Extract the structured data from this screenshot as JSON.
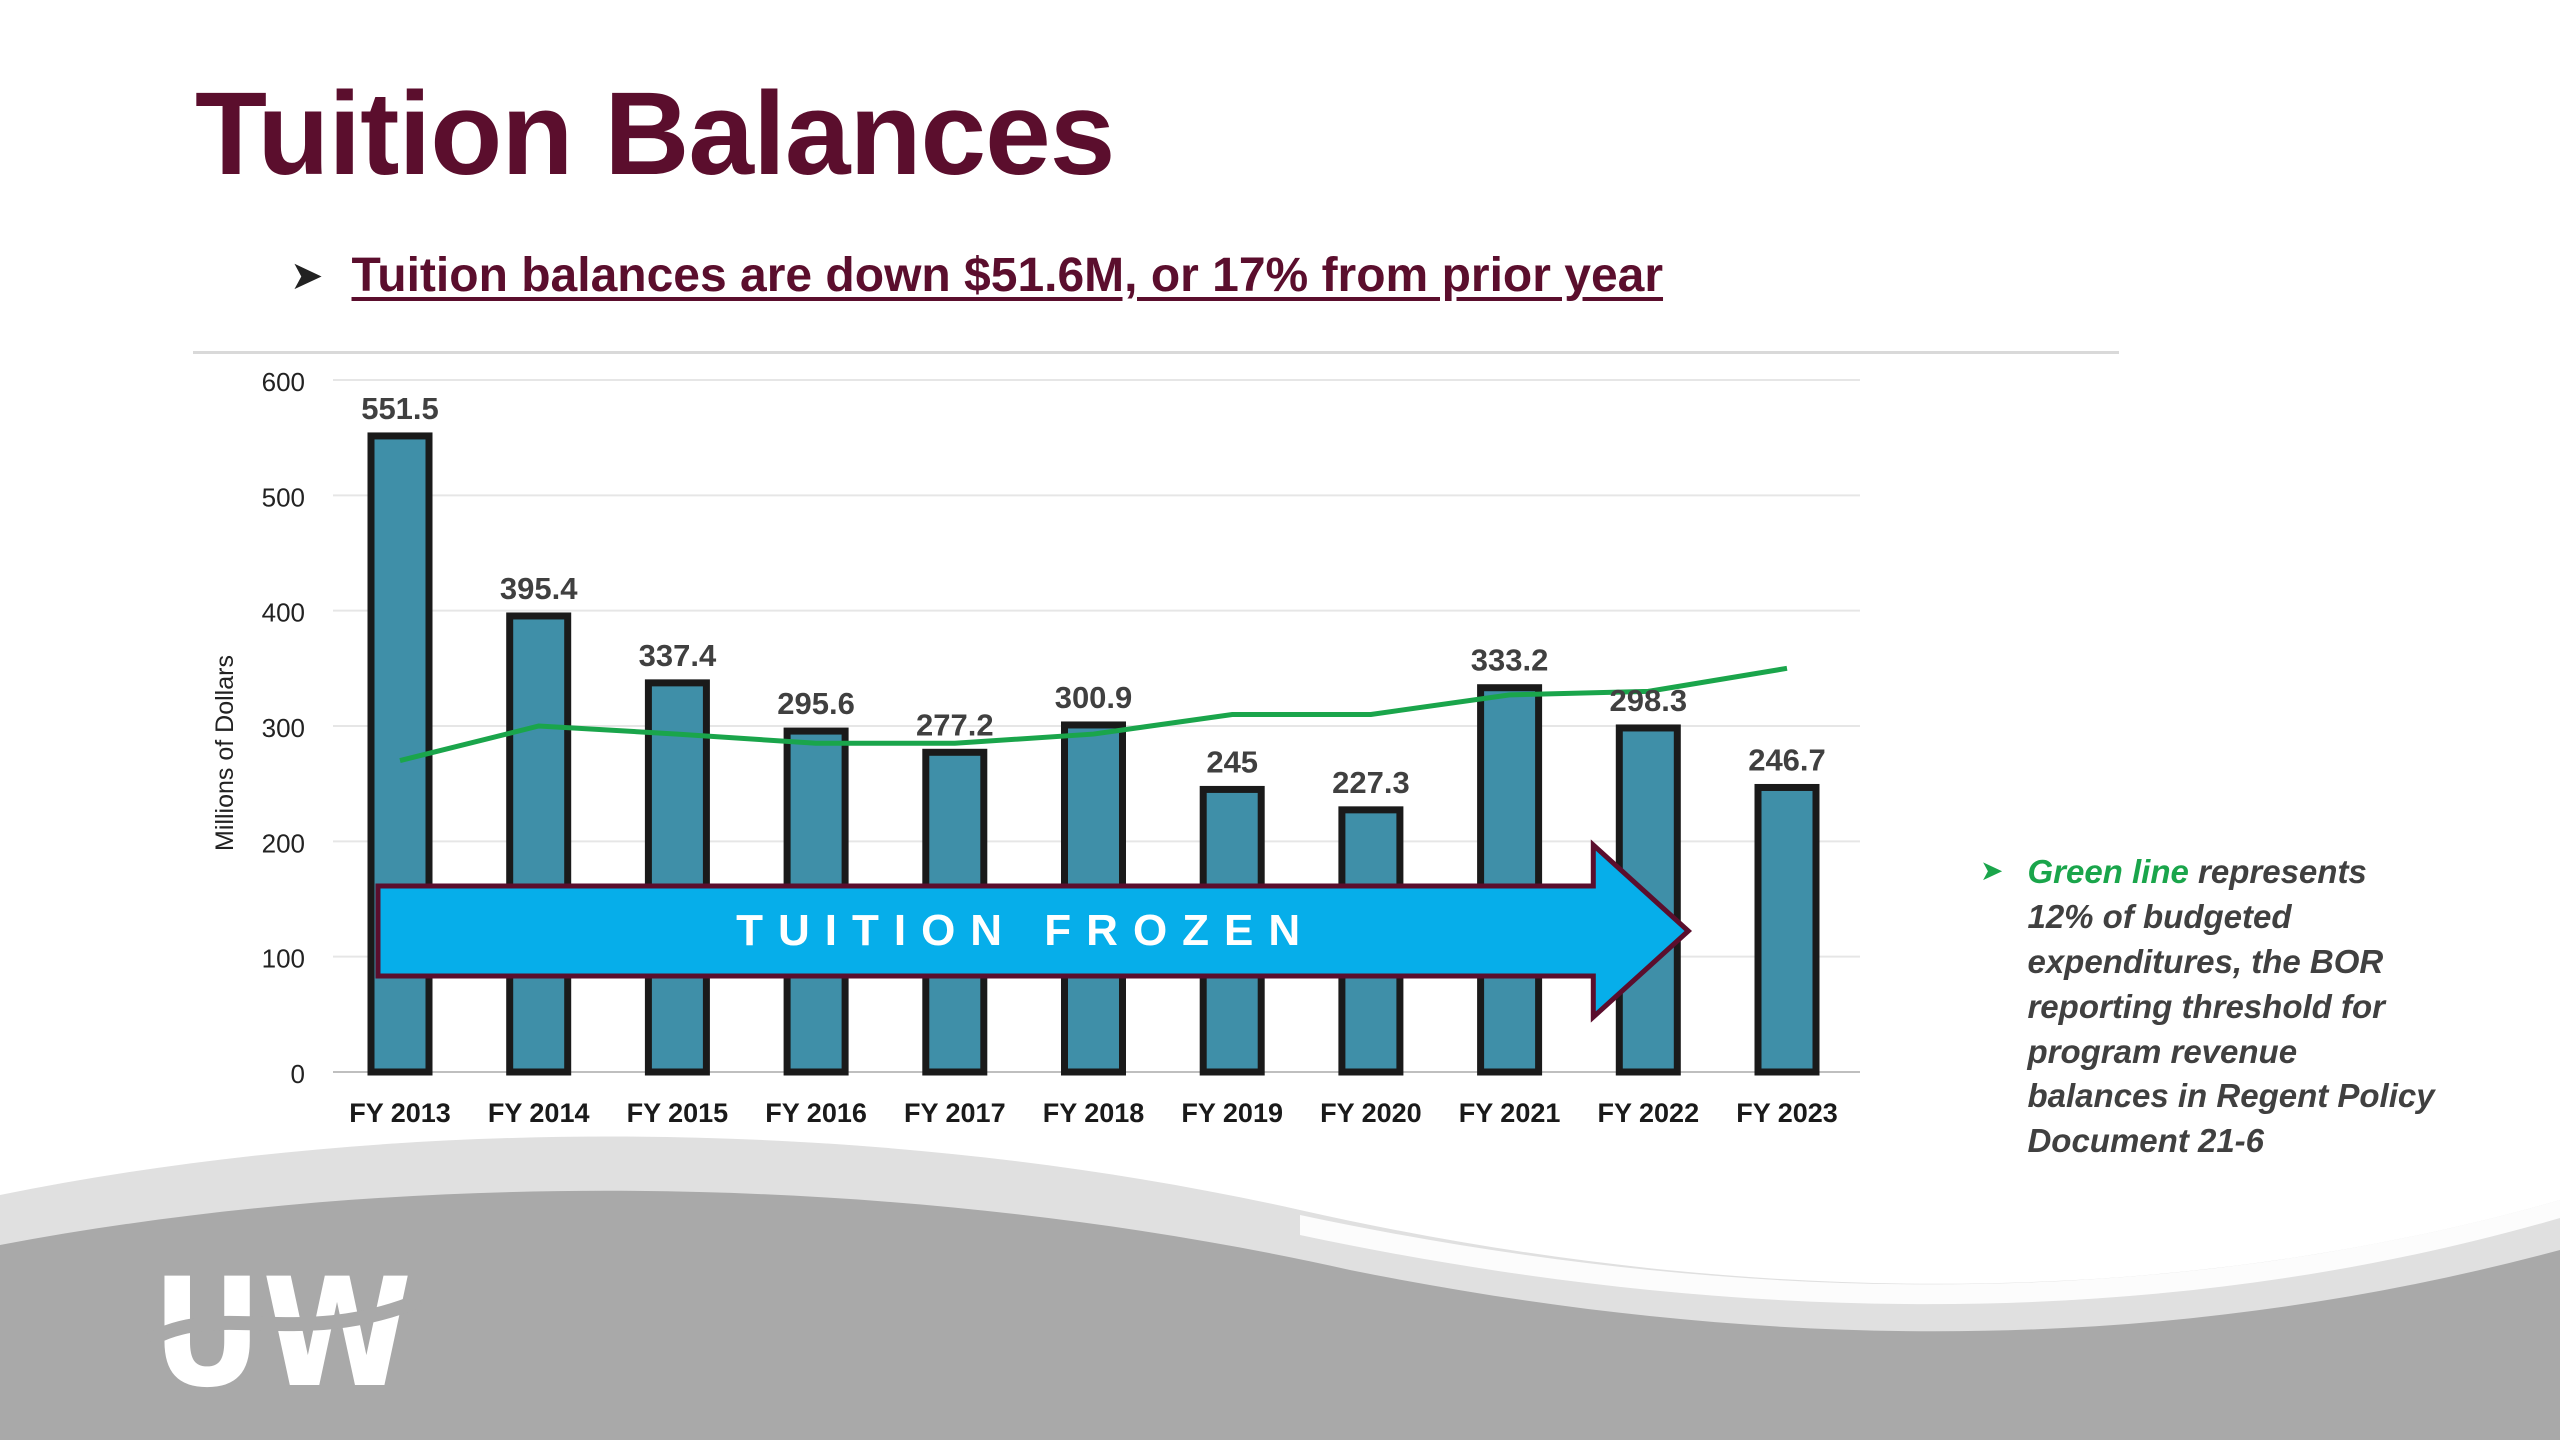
{
  "slide": {
    "title": "Tuition Balances",
    "subtitle": "Tuition balances are down $51.6M, or 17% from prior year",
    "note_highlight": "Green line",
    "note_text": " represents 12% of budgeted expenditures, the BOR reporting threshold for program revenue balances in Regent Policy Document 21-6",
    "logo_text": "UW"
  },
  "colors": {
    "title": "#5b0e2d",
    "bar_fill": "#3f8fa8",
    "bar_stroke": "#1a1a1a",
    "threshold_line": "#1aa54b",
    "arrow_fill": "#06aeea",
    "arrow_stroke": "#5b0e2d"
  },
  "chart_data": {
    "type": "bar",
    "ylabel": "Millions of Dollars",
    "xlabel": "",
    "ylim": [
      0,
      600
    ],
    "yticks": [
      0,
      100,
      200,
      300,
      400,
      500,
      600
    ],
    "grid": true,
    "categories": [
      "FY 2013",
      "FY 2014",
      "FY 2015",
      "FY 2016",
      "FY 2017",
      "FY 2018",
      "FY 2019",
      "FY 2020",
      "FY 2021",
      "FY 2022",
      "FY 2023"
    ],
    "series": [
      {
        "type": "bar",
        "values": [
          551.5,
          395.4,
          337.4,
          295.6,
          277.2,
          300.9,
          245,
          227.3,
          333.2,
          298.3,
          246.7
        ],
        "labels": [
          "551.5",
          "395.4",
          "337.4",
          "295.6",
          "277.2",
          "300.9",
          "245",
          "227.3",
          "333.2",
          "298.3",
          "246.7"
        ]
      },
      {
        "type": "line",
        "values": [
          270,
          300,
          293,
          285,
          285,
          293,
          310,
          310,
          327,
          330,
          350
        ]
      }
    ],
    "annotation": "TUITION FROZEN",
    "annotation_span": [
      "FY 2013",
      "FY 2022"
    ]
  }
}
